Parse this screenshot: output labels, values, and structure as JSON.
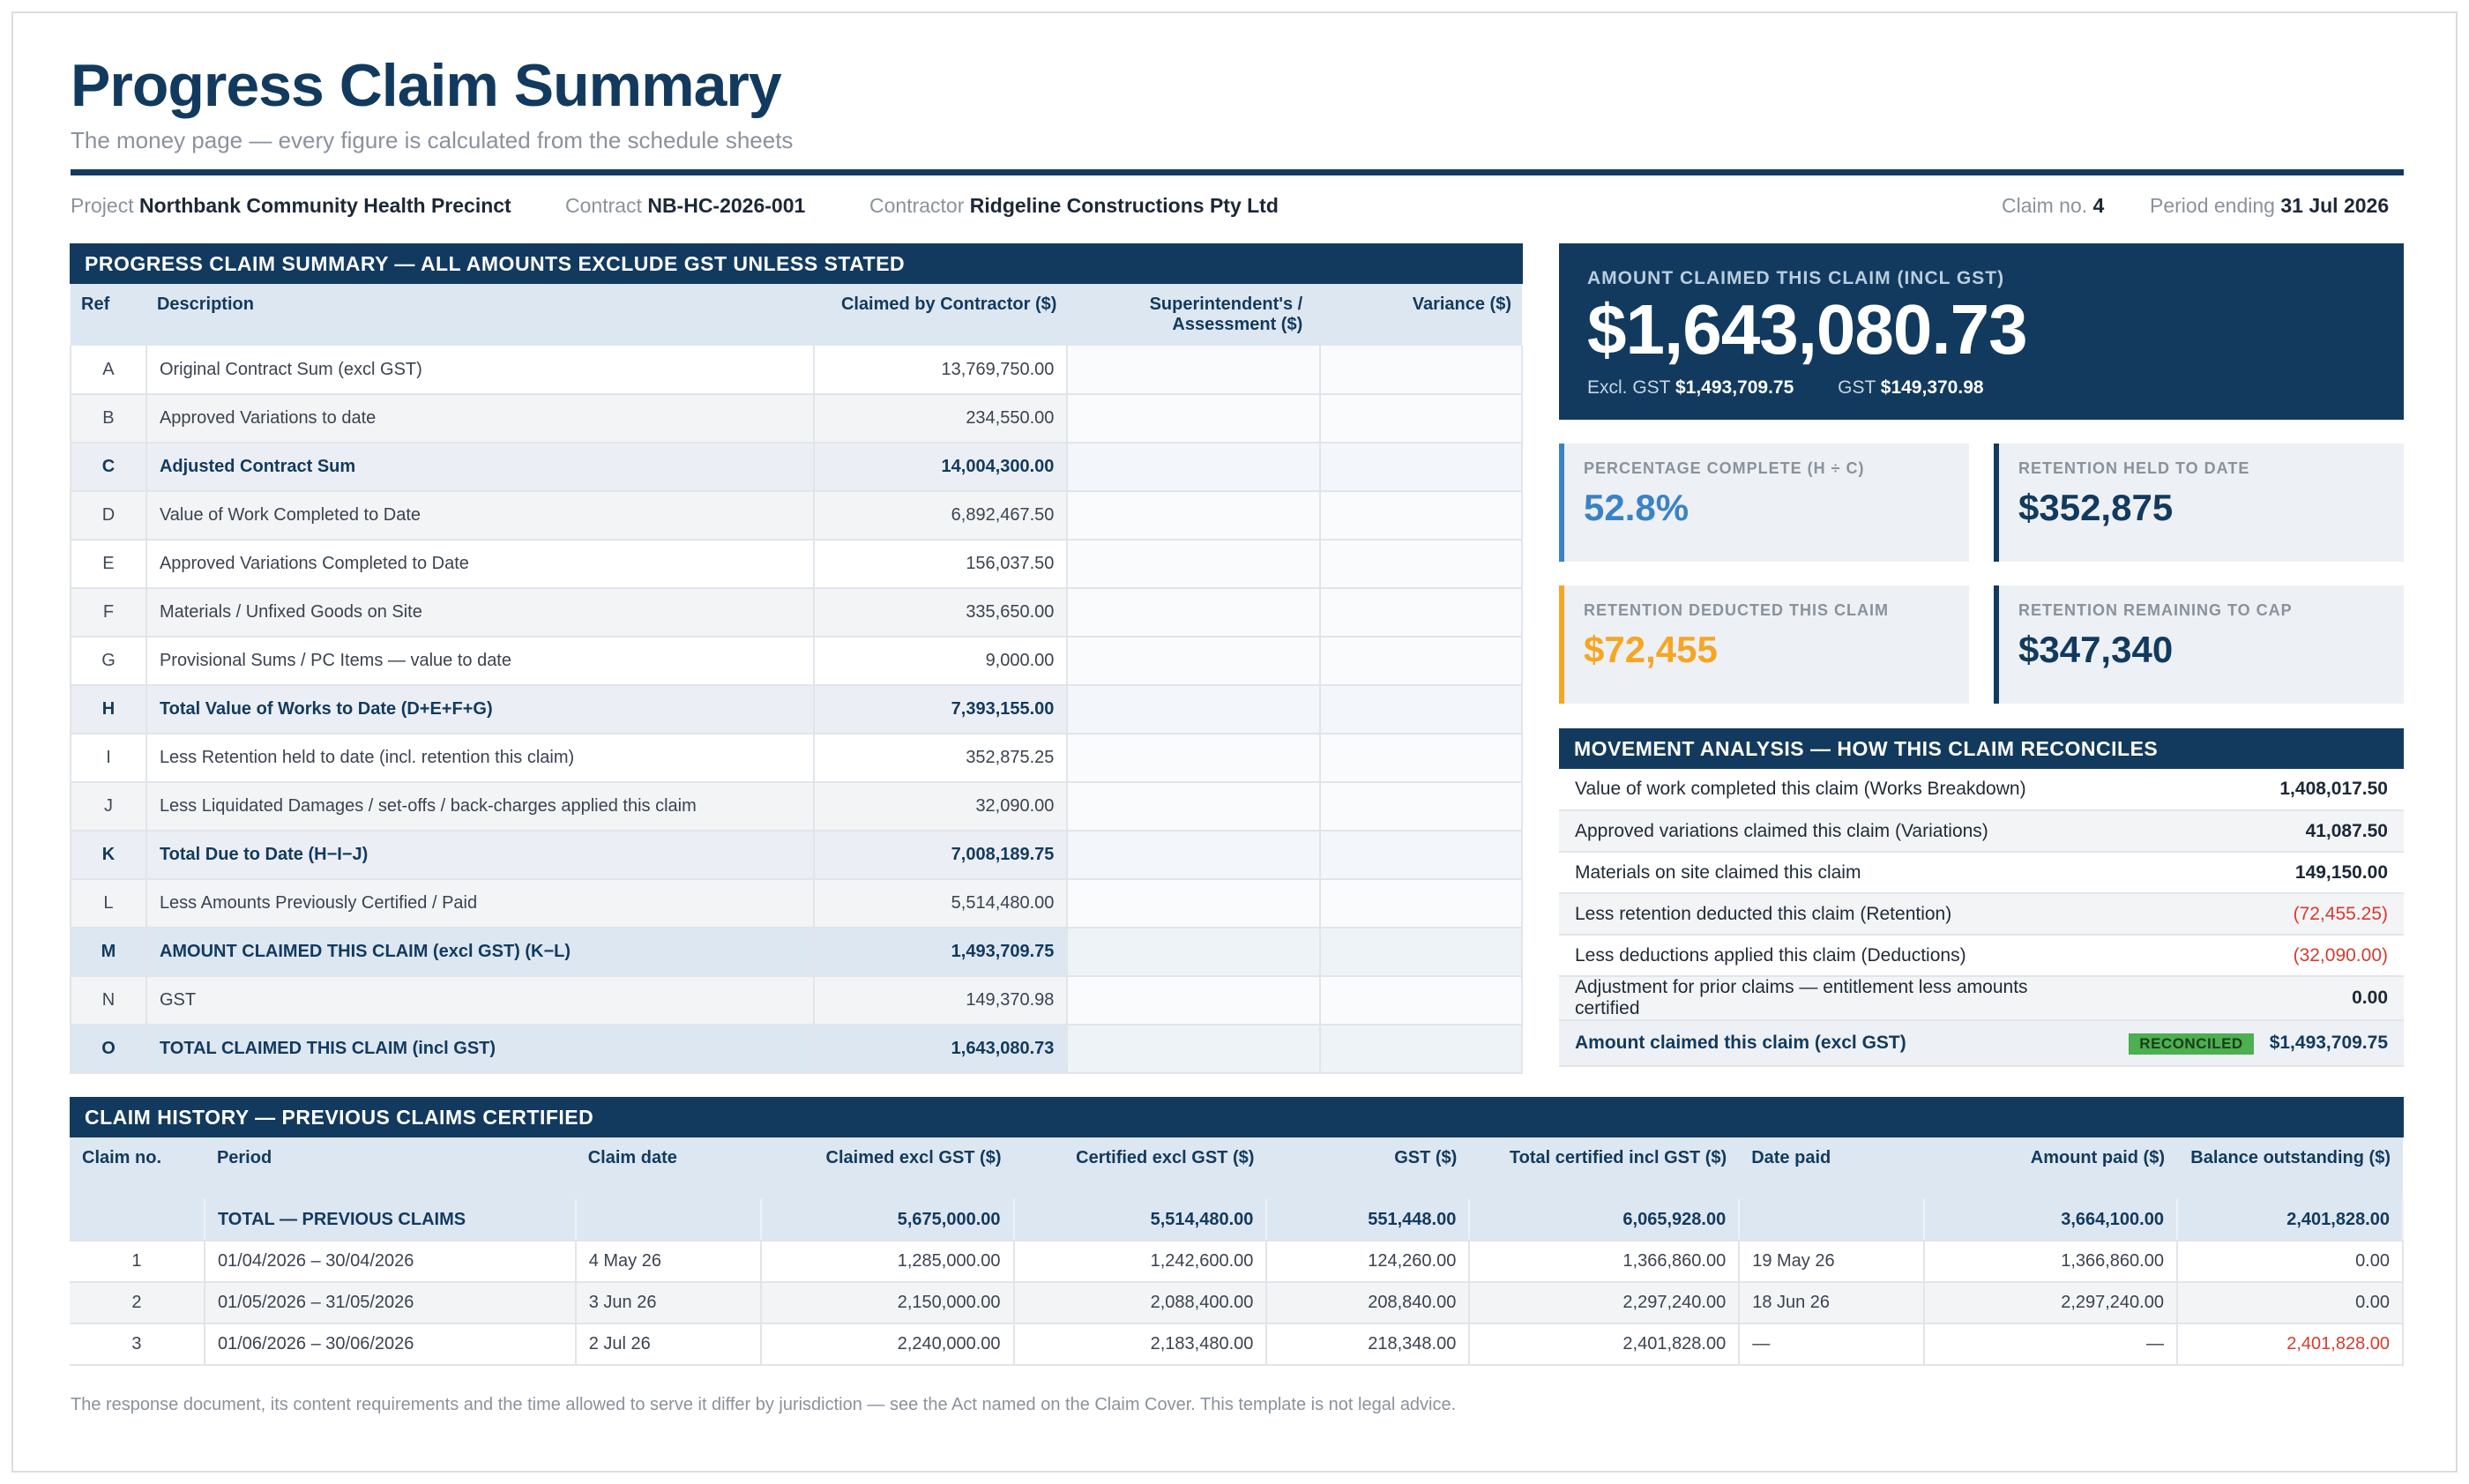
{
  "header": {
    "title": "Progress Claim Summary",
    "subtitle": "The money page — every figure is calculated from the schedule sheets"
  },
  "meta": {
    "project_label": "Project",
    "project": "Northbank Community Health Precinct",
    "contract_label": "Contract",
    "contract": "NB-HC-2026-001",
    "contractor_label": "Contractor",
    "contractor": "Ridgeline Constructions Pty Ltd",
    "claim_no_label": "Claim no.",
    "claim_no": "4",
    "period_label": "Period ending",
    "period": "31 Jul 2026"
  },
  "summary": {
    "heading": "PROGRESS CLAIM SUMMARY — ALL AMOUNTS EXCLUDE GST UNLESS STATED",
    "columns": {
      "ref": "Ref",
      "description": "Description",
      "claimed": "Claimed by Contractor ($)",
      "superintendent": "Superintendent's / Assessment ($)",
      "variance": "Variance ($)"
    },
    "rows": [
      {
        "ref": "A",
        "desc": "Original Contract Sum (excl GST)",
        "value": "13,769,750.00",
        "style": ""
      },
      {
        "ref": "B",
        "desc": "Approved Variations to date",
        "value": "234,550.00",
        "style": ""
      },
      {
        "ref": "C",
        "desc": "Adjusted Contract Sum",
        "value": "14,004,300.00",
        "style": "sub"
      },
      {
        "ref": "D",
        "desc": "Value of Work Completed to Date",
        "value": "6,892,467.50",
        "style": ""
      },
      {
        "ref": "E",
        "desc": "Approved Variations Completed to Date",
        "value": "156,037.50",
        "style": ""
      },
      {
        "ref": "F",
        "desc": "Materials / Unfixed Goods on Site",
        "value": "335,650.00",
        "style": ""
      },
      {
        "ref": "G",
        "desc": "Provisional Sums / PC Items — value to date",
        "value": "9,000.00",
        "style": ""
      },
      {
        "ref": "H",
        "desc": "Total Value of Works to Date (D+E+F+G)",
        "value": "7,393,155.00",
        "style": "sub"
      },
      {
        "ref": "I",
        "desc": "Less Retention held to date (incl. retention this claim)",
        "value": "352,875.25",
        "style": ""
      },
      {
        "ref": "J",
        "desc": "Less Liquidated Damages / set-offs / back-charges applied this claim",
        "value": "32,090.00",
        "style": ""
      },
      {
        "ref": "K",
        "desc": "Total Due to Date (H−I−J)",
        "value": "7,008,189.75",
        "style": "sub"
      },
      {
        "ref": "L",
        "desc": "Less Amounts Previously Certified / Paid",
        "value": "5,514,480.00",
        "style": ""
      },
      {
        "ref": "M",
        "desc": "AMOUNT CLAIMED THIS CLAIM (excl GST) (K−L)",
        "value": "1,493,709.75",
        "style": "key"
      },
      {
        "ref": "N",
        "desc": "GST",
        "value": "149,370.98",
        "style": ""
      },
      {
        "ref": "O",
        "desc": "TOTAL CLAIMED THIS CLAIM (incl GST)",
        "value": "1,643,080.73",
        "style": "key"
      }
    ]
  },
  "hero": {
    "label": "AMOUNT CLAIMED THIS CLAIM (INCL GST)",
    "value": "$1,643,080.73",
    "excl_label": "Excl. GST",
    "excl_value": "$1,493,709.75",
    "gst_label": "GST",
    "gst_value": "$149,370.98"
  },
  "kpis": {
    "pct_label": "PERCENTAGE COMPLETE (H ÷ C)",
    "pct_value": "52.8%",
    "pct_color": "#3b82c4",
    "held_label": "RETENTION HELD TO DATE",
    "held_value": "$352,875",
    "deducted_label": "RETENTION DEDUCTED THIS CLAIM",
    "deducted_value": "$72,455",
    "deducted_color": "#f5a623",
    "remaining_label": "RETENTION REMAINING TO CAP",
    "remaining_value": "$347,340"
  },
  "movement": {
    "heading": "MOVEMENT ANALYSIS — HOW THIS CLAIM RECONCILES",
    "rows": [
      {
        "label": "Value of work completed this claim (Works Breakdown)",
        "value": "1,408,017.50",
        "negative": false
      },
      {
        "label": "Approved variations claimed this claim (Variations)",
        "value": "41,087.50",
        "negative": false
      },
      {
        "label": "Materials on site claimed this claim",
        "value": "149,150.00",
        "negative": false
      },
      {
        "label": "Less retention deducted this claim (Retention)",
        "value": "(72,455.25)",
        "negative": true
      },
      {
        "label": "Less deductions applied this claim (Deductions)",
        "value": "(32,090.00)",
        "negative": true
      },
      {
        "label": "Adjustment for prior claims — entitlement less amounts certified",
        "value": "0.00",
        "negative": false
      }
    ],
    "final_label": "Amount claimed this claim (excl GST)",
    "badge": "RECONCILED",
    "final_value": "$1,493,709.75"
  },
  "history": {
    "heading": "CLAIM HISTORY — PREVIOUS CLAIMS CERTIFIED",
    "columns": {
      "claim_no": "Claim no.",
      "period": "Period",
      "claim_date": "Claim date",
      "claimed": "Claimed excl GST ($)",
      "certified": "Certified excl GST ($)",
      "gst": "GST ($)",
      "total": "Total certified incl GST ($)",
      "date_paid": "Date paid",
      "amount_paid": "Amount paid ($)",
      "balance": "Balance outstanding ($)"
    },
    "total": {
      "label": "TOTAL — PREVIOUS CLAIMS",
      "claimed": "5,675,000.00",
      "certified": "5,514,480.00",
      "gst": "551,448.00",
      "total": "6,065,928.00",
      "amount_paid": "3,664,100.00",
      "balance": "2,401,828.00"
    },
    "rows": [
      {
        "no": "1",
        "period": "01/04/2026 – 30/04/2026",
        "date": "4 May 26",
        "claimed": "1,285,000.00",
        "certified": "1,242,600.00",
        "gst": "124,260.00",
        "total": "1,366,860.00",
        "paid_date": "19 May 26",
        "paid": "1,366,860.00",
        "balance": "0.00",
        "overdue": false
      },
      {
        "no": "2",
        "period": "01/05/2026 – 31/05/2026",
        "date": "3 Jun 26",
        "claimed": "2,150,000.00",
        "certified": "2,088,400.00",
        "gst": "208,840.00",
        "total": "2,297,240.00",
        "paid_date": "18 Jun 26",
        "paid": "2,297,240.00",
        "balance": "0.00",
        "overdue": false
      },
      {
        "no": "3",
        "period": "01/06/2026 – 30/06/2026",
        "date": "2 Jul 26",
        "claimed": "2,240,000.00",
        "certified": "2,183,480.00",
        "gst": "218,348.00",
        "total": "2,401,828.00",
        "paid_date": "—",
        "paid": "—",
        "balance": "2,401,828.00",
        "overdue": true
      }
    ]
  },
  "footer": {
    "note": "The response document, its content requirements and the time allowed to serve it differ by jurisdiction — see the Act named on the Claim Cover. This template is not legal advice."
  },
  "colors": {
    "navy": "#123a5e",
    "header_tint": "#dde7f1",
    "negative": "#d63b2f",
    "reconciled": "#4caf50"
  }
}
